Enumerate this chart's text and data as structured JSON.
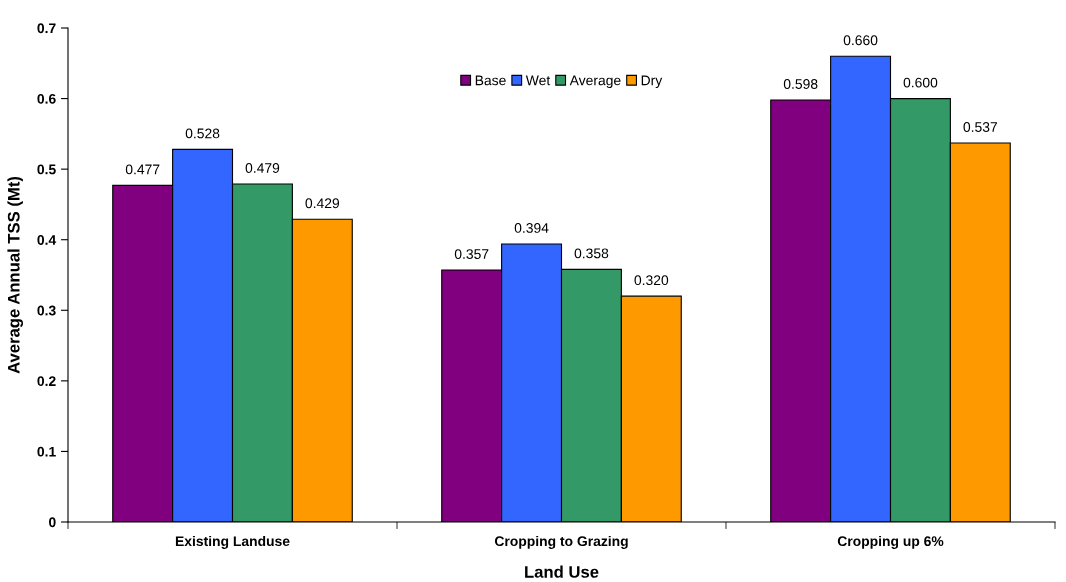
{
  "chart_data": {
    "type": "bar",
    "xlabel": "Land Use",
    "ylabel": "Average Annual TSS (Mt)",
    "categories": [
      "Existing Landuse",
      "Cropping to Grazing",
      "Cropping up 6%"
    ],
    "series": [
      {
        "name": "Base",
        "color": "#800080",
        "values": [
          0.477,
          0.357,
          0.598
        ],
        "value_labels": [
          "0.477",
          "0.357",
          "0.598"
        ]
      },
      {
        "name": "Wet",
        "color": "#3366ff",
        "values": [
          0.528,
          0.394,
          0.66
        ],
        "value_labels": [
          "0.528",
          "0.394",
          "0.660"
        ]
      },
      {
        "name": "Average",
        "color": "#339966",
        "values": [
          0.479,
          0.358,
          0.6
        ],
        "value_labels": [
          "0.479",
          "0.358",
          "0.600"
        ]
      },
      {
        "name": "Dry",
        "color": "#ff9900",
        "values": [
          0.429,
          0.32,
          0.537
        ],
        "value_labels": [
          "0.429",
          "0.320",
          "0.537"
        ]
      }
    ],
    "ylim": [
      0,
      0.7
    ],
    "yticks": [
      0,
      0.1,
      0.2,
      0.3,
      0.4,
      0.5,
      0.6,
      0.7
    ],
    "grid": false,
    "legend": "top"
  }
}
